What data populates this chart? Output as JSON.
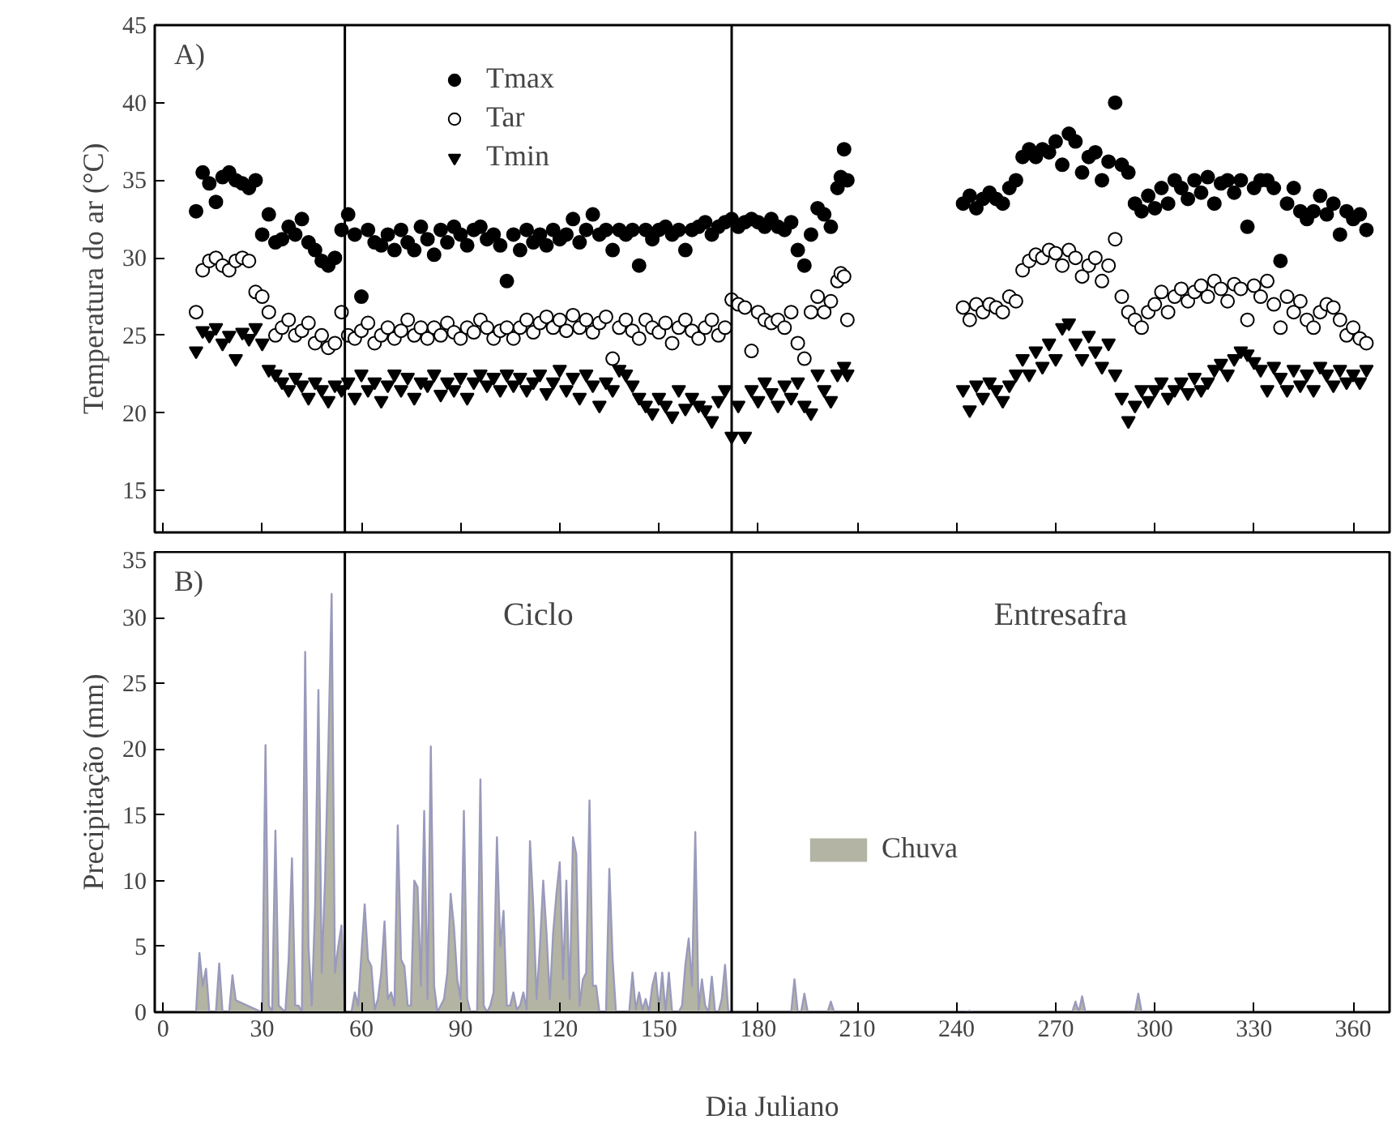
{
  "chart_data": [
    {
      "type": "scatter",
      "ylabel": "Temperatura do ar (°C)",
      "annotations": [
        "A)"
      ],
      "xlim": [
        -2.5,
        371
      ],
      "ylim": [
        12.3,
        45
      ],
      "xticks": [
        0,
        30,
        60,
        90,
        120,
        150,
        180,
        210,
        240,
        270,
        300,
        330,
        360
      ],
      "yticks": [
        15,
        20,
        25,
        30,
        35,
        40,
        45
      ],
      "tick_labels": "y",
      "grid": false,
      "legend": "top",
      "ref_lines": [
        {
          "axis": "x",
          "value": 55,
          "color": "#000000"
        },
        {
          "axis": "x",
          "value": 172,
          "color": "#000000"
        }
      ],
      "series": [
        {
          "name": "Tmax",
          "color": "#000000",
          "marker": "circle",
          "x": [
            10,
            12,
            14,
            16,
            18,
            20,
            22,
            24,
            26,
            28,
            30,
            32,
            34,
            36,
            38,
            40,
            42,
            44,
            46,
            48,
            50,
            52,
            54,
            56,
            58,
            60,
            62,
            64,
            66,
            68,
            70,
            72,
            74,
            76,
            78,
            80,
            82,
            84,
            86,
            88,
            90,
            92,
            94,
            96,
            98,
            100,
            102,
            104,
            106,
            108,
            110,
            112,
            114,
            116,
            118,
            120,
            122,
            124,
            126,
            128,
            130,
            132,
            134,
            136,
            138,
            140,
            142,
            144,
            146,
            148,
            150,
            152,
            154,
            156,
            158,
            160,
            162,
            164,
            166,
            168,
            170,
            172,
            174,
            176,
            178,
            180,
            182,
            184,
            186,
            188,
            190,
            192,
            194,
            196,
            198,
            200,
            202,
            204,
            205,
            206,
            207,
            242,
            244,
            246,
            248,
            250,
            252,
            254,
            256,
            258,
            260,
            262,
            264,
            266,
            268,
            270,
            272,
            274,
            276,
            278,
            280,
            282,
            284,
            286,
            288,
            290,
            292,
            294,
            296,
            298,
            300,
            302,
            304,
            306,
            308,
            310,
            312,
            314,
            316,
            318,
            320,
            322,
            324,
            326,
            328,
            330,
            332,
            334,
            336,
            338,
            340,
            342,
            344,
            346,
            348,
            350,
            352,
            354,
            356,
            358,
            360,
            362,
            364
          ],
          "values": [
            33,
            35.5,
            34.8,
            33.6,
            35.2,
            35.5,
            35,
            34.8,
            34.5,
            35,
            31.5,
            32.8,
            31,
            31.2,
            32,
            31.5,
            32.5,
            31,
            30.5,
            29.8,
            29.5,
            30,
            31.8,
            32.8,
            31.5,
            27.5,
            31.8,
            31,
            30.8,
            31.5,
            30.5,
            31.8,
            31,
            30.5,
            32,
            31.2,
            30.2,
            31.8,
            31,
            32,
            31.5,
            30.8,
            31.8,
            32,
            31.2,
            31.5,
            30.8,
            28.5,
            31.5,
            30.5,
            31.8,
            31,
            31.5,
            30.8,
            31.8,
            31.2,
            31.5,
            32.5,
            31,
            31.8,
            32.8,
            31.5,
            31.8,
            30.5,
            31.8,
            31.5,
            31.8,
            29.5,
            31.8,
            31.2,
            31.8,
            32,
            31.5,
            31.8,
            30.5,
            31.8,
            32,
            32.3,
            31.5,
            32,
            32.3,
            32.5,
            32,
            32.3,
            32.5,
            32.3,
            32,
            32.5,
            32,
            31.8,
            32.3,
            30.5,
            29.5,
            31.5,
            33.2,
            32.8,
            32,
            34.5,
            35.2,
            37,
            35,
            33.5,
            34,
            33.2,
            33.8,
            34.2,
            33.8,
            33.5,
            34.5,
            35,
            36.5,
            37,
            36.5,
            37,
            36.8,
            37.5,
            36,
            38,
            37.5,
            35.5,
            36.5,
            36.8,
            35,
            36.2,
            40,
            36,
            35.5,
            33.5,
            33,
            34,
            33.2,
            34.5,
            33.5,
            35,
            34.5,
            33.8,
            35,
            34.2,
            35.2,
            33.5,
            34.8,
            35,
            34.2,
            35,
            32,
            34.5,
            35,
            35,
            34.5,
            29.8,
            33.5,
            34.5,
            33,
            32.5,
            33,
            34,
            32.8,
            33.5,
            31.5,
            33,
            32.5,
            32.8,
            31.8
          ]
        },
        {
          "name": "Tar",
          "color": "#ffffff",
          "marker": "circle",
          "x": [
            10,
            12,
            14,
            16,
            18,
            20,
            22,
            24,
            26,
            28,
            30,
            32,
            34,
            36,
            38,
            40,
            42,
            44,
            46,
            48,
            50,
            52,
            54,
            56,
            58,
            60,
            62,
            64,
            66,
            68,
            70,
            72,
            74,
            76,
            78,
            80,
            82,
            84,
            86,
            88,
            90,
            92,
            94,
            96,
            98,
            100,
            102,
            104,
            106,
            108,
            110,
            112,
            114,
            116,
            118,
            120,
            122,
            124,
            126,
            128,
            130,
            132,
            134,
            136,
            138,
            140,
            142,
            144,
            146,
            148,
            150,
            152,
            154,
            156,
            158,
            160,
            162,
            164,
            166,
            168,
            170,
            172,
            174,
            176,
            178,
            180,
            182,
            184,
            186,
            188,
            190,
            192,
            194,
            196,
            198,
            200,
            202,
            204,
            205,
            206,
            207,
            242,
            244,
            246,
            248,
            250,
            252,
            254,
            256,
            258,
            260,
            262,
            264,
            266,
            268,
            270,
            272,
            274,
            276,
            278,
            280,
            282,
            284,
            286,
            288,
            290,
            292,
            294,
            296,
            298,
            300,
            302,
            304,
            306,
            308,
            310,
            312,
            314,
            316,
            318,
            320,
            322,
            324,
            326,
            328,
            330,
            332,
            334,
            336,
            338,
            340,
            342,
            344,
            346,
            348,
            350,
            352,
            354,
            356,
            358,
            360,
            362,
            364
          ],
          "values": [
            26.5,
            29.2,
            29.8,
            30,
            29.5,
            29.2,
            29.8,
            30,
            29.8,
            27.8,
            27.5,
            26.5,
            25,
            25.5,
            26,
            25,
            25.3,
            25.8,
            24.5,
            25,
            24.2,
            24.5,
            26.5,
            25,
            24.8,
            25.3,
            25.8,
            24.5,
            25,
            25.5,
            24.8,
            25.3,
            26,
            25,
            25.5,
            24.8,
            25.5,
            25,
            25.8,
            25.2,
            24.8,
            25.5,
            25.2,
            26,
            25.5,
            24.8,
            25.3,
            25.5,
            24.8,
            25.5,
            26,
            25.2,
            25.8,
            26.2,
            25.5,
            26,
            25.3,
            26.3,
            25.5,
            26,
            25.2,
            25.8,
            26.2,
            23.5,
            25.5,
            26,
            25.3,
            24.8,
            26,
            25.5,
            25.2,
            25.8,
            24.5,
            25.5,
            26,
            25.3,
            24.8,
            25.5,
            26,
            25,
            25.5,
            27.3,
            27,
            26.8,
            24,
            26.5,
            26,
            25.8,
            26,
            25.5,
            26.5,
            24.5,
            23.5,
            26.5,
            27.5,
            26.5,
            27.2,
            28.5,
            29,
            28.8,
            26,
            26.8,
            26,
            27,
            26.5,
            27,
            26.8,
            26.5,
            27.5,
            27.2,
            29.2,
            29.8,
            30.2,
            30,
            30.5,
            30.3,
            29.5,
            30.5,
            30,
            28.8,
            29.5,
            30,
            28.5,
            29.5,
            31.2,
            27.5,
            26.5,
            26,
            25.5,
            26.5,
            27,
            27.8,
            26.5,
            27.5,
            28,
            27.2,
            27.8,
            28.2,
            27.5,
            28.5,
            28,
            27.2,
            28.3,
            28,
            26,
            28.2,
            27.5,
            28.5,
            27,
            25.5,
            27.5,
            26.5,
            27.2,
            26,
            25.5,
            26.5,
            27,
            26.8,
            26,
            25,
            25.5,
            24.8,
            24.5
          ]
        },
        {
          "name": "Tmin",
          "color": "#000000",
          "marker": "triangle",
          "x": [
            10,
            12,
            14,
            16,
            18,
            20,
            22,
            24,
            26,
            28,
            30,
            32,
            34,
            36,
            38,
            40,
            42,
            44,
            46,
            48,
            50,
            52,
            54,
            56,
            58,
            60,
            62,
            64,
            66,
            68,
            70,
            72,
            74,
            76,
            78,
            80,
            82,
            84,
            86,
            88,
            90,
            92,
            94,
            96,
            98,
            100,
            102,
            104,
            106,
            108,
            110,
            112,
            114,
            116,
            118,
            120,
            122,
            124,
            126,
            128,
            130,
            132,
            134,
            136,
            138,
            140,
            142,
            144,
            146,
            148,
            150,
            152,
            154,
            156,
            158,
            160,
            162,
            164,
            166,
            168,
            170,
            172,
            174,
            176,
            178,
            180,
            182,
            184,
            186,
            188,
            190,
            192,
            194,
            196,
            198,
            200,
            202,
            204,
            206,
            207,
            242,
            244,
            246,
            248,
            250,
            252,
            254,
            256,
            258,
            260,
            262,
            264,
            266,
            268,
            270,
            272,
            274,
            276,
            278,
            280,
            282,
            284,
            286,
            288,
            290,
            292,
            294,
            296,
            298,
            300,
            302,
            304,
            306,
            308,
            310,
            312,
            314,
            316,
            318,
            320,
            322,
            324,
            326,
            328,
            330,
            332,
            334,
            336,
            338,
            340,
            342,
            344,
            346,
            348,
            350,
            352,
            354,
            356,
            358,
            360,
            362,
            364
          ],
          "values": [
            24,
            25.3,
            25,
            25.5,
            24.5,
            25,
            23.5,
            25.2,
            24.8,
            25.5,
            24.5,
            22.8,
            22.5,
            22,
            21.5,
            22.3,
            21.8,
            21,
            22,
            21.5,
            20.8,
            21.8,
            21.5,
            22,
            21,
            22.5,
            21.5,
            22,
            20.8,
            21.8,
            22.5,
            21.5,
            22.3,
            21,
            22,
            21.8,
            22.5,
            21.2,
            22,
            21.5,
            22.3,
            21,
            22,
            22.5,
            21.8,
            22.3,
            21.5,
            22.5,
            21.8,
            22.3,
            21.5,
            22,
            22.5,
            21.3,
            22,
            22.8,
            21.5,
            22.3,
            21,
            22.5,
            21.8,
            20.5,
            22,
            21.5,
            22.8,
            22.5,
            21.8,
            21,
            20.5,
            20,
            21,
            20.5,
            19.8,
            21.5,
            20.3,
            21,
            20.5,
            20.2,
            19.5,
            20.8,
            21.5,
            18.5,
            20.5,
            18.5,
            21.5,
            20.8,
            22,
            21.3,
            20.5,
            21.8,
            21,
            22,
            20.5,
            20,
            22.5,
            21.5,
            20.8,
            22.5,
            23,
            22.5,
            21.5,
            20.2,
            21.8,
            21,
            22,
            21.5,
            20.8,
            21.8,
            22.5,
            23.5,
            22.5,
            24,
            23,
            24.5,
            23.5,
            25.5,
            25.8,
            24.5,
            23.5,
            25,
            24,
            23,
            24.5,
            22.5,
            21,
            19.5,
            20.5,
            21.5,
            20.8,
            21.5,
            22,
            21,
            21.5,
            22,
            21.3,
            22.3,
            21.5,
            22,
            22.8,
            23.2,
            22.5,
            23.5,
            24,
            23.8,
            23.3,
            22.8,
            21.5,
            23,
            22.3,
            21.5,
            22.8,
            21.8,
            22.5,
            21.5,
            23,
            22.5,
            21.8,
            22.8,
            22,
            22.5,
            22,
            22.8
          ]
        }
      ]
    },
    {
      "type": "area",
      "xlabel": "Dia Juliano",
      "ylabel": "Precipitação (mm)",
      "annotations": [
        "B)",
        "Ciclo",
        "Entresafra"
      ],
      "xlim": [
        -2.5,
        371
      ],
      "ylim": [
        0,
        35
      ],
      "xticks": [
        0,
        30,
        60,
        90,
        120,
        150,
        180,
        210,
        240,
        270,
        300,
        330,
        360
      ],
      "yticks": [
        0,
        5,
        10,
        15,
        20,
        25,
        30,
        35
      ],
      "grid": false,
      "legend": "right",
      "ref_lines": [
        {
          "axis": "x",
          "value": 55,
          "color": "#000000"
        },
        {
          "axis": "x",
          "value": 172,
          "color": "#000000"
        }
      ],
      "series": [
        {
          "name": "Chuva",
          "color": "#b4b4a4",
          "x": [
            10,
            11,
            12,
            13,
            14,
            16,
            17,
            18,
            20,
            21,
            22,
            29,
            30,
            31,
            32,
            33,
            34,
            35,
            37,
            38,
            39,
            40,
            41,
            42,
            43,
            44,
            45,
            46,
            47,
            48,
            49,
            50,
            51,
            52,
            53,
            54,
            55,
            57,
            58,
            59,
            61,
            62,
            63,
            64,
            65,
            66,
            67,
            68,
            69,
            70,
            71,
            72,
            73,
            74,
            75,
            76,
            77,
            78,
            79,
            80,
            81,
            82,
            83,
            85,
            86,
            87,
            88,
            89,
            90,
            91,
            92,
            93,
            95,
            96,
            97,
            98,
            99,
            100,
            101,
            102,
            103,
            104,
            105,
            106,
            107,
            108,
            109,
            110,
            111,
            112,
            113,
            114,
            115,
            116,
            117,
            118,
            119,
            120,
            121,
            122,
            123,
            124,
            125,
            126,
            127,
            128,
            129,
            130,
            131,
            132,
            134,
            135,
            136,
            137,
            141,
            142,
            143,
            144,
            145,
            146,
            147,
            148,
            149,
            150,
            151,
            152,
            153,
            154,
            156,
            157,
            158,
            159,
            160,
            161,
            162,
            163,
            164,
            165,
            166,
            167,
            168,
            169,
            170,
            171,
            190,
            191,
            192,
            193,
            194,
            195,
            201,
            202,
            203,
            243,
            244,
            245,
            275,
            276,
            277,
            278,
            279,
            294,
            295,
            296,
            365
          ],
          "values": [
            0,
            4.5,
            2,
            3.3,
            0,
            0,
            3.7,
            0,
            0,
            2.8,
            0.9,
            0.1,
            0,
            20.3,
            0.5,
            0,
            13.8,
            0.5,
            0,
            4,
            11.7,
            0.5,
            0.5,
            0,
            27.4,
            5,
            0.5,
            8,
            24.5,
            3,
            10,
            20,
            31.8,
            3,
            5,
            6.6,
            0,
            0,
            1.5,
            0.5,
            8.2,
            4,
            3.5,
            0.2,
            1,
            3,
            6.9,
            1,
            1.5,
            0.5,
            14.2,
            4,
            3.5,
            0.5,
            0.5,
            10,
            9.5,
            2,
            15.3,
            1,
            20.2,
            2,
            0,
            1,
            3,
            9,
            6.5,
            2.5,
            1,
            15.3,
            1,
            0,
            0,
            17.7,
            0.5,
            0,
            0.5,
            1.5,
            13.3,
            5,
            7.7,
            0.5,
            0.5,
            1.5,
            0.2,
            0.5,
            1.5,
            0.2,
            13,
            8,
            1,
            5,
            10,
            6,
            1,
            6,
            9,
            11.4,
            2.5,
            10,
            1,
            13.3,
            12,
            0.5,
            2.5,
            3,
            16.1,
            2,
            2,
            0,
            0,
            10.9,
            4,
            0,
            0,
            3,
            0.2,
            1.5,
            0.2,
            1,
            0,
            2,
            3,
            0.2,
            3,
            0,
            3,
            0,
            0,
            0.5,
            3.6,
            5.6,
            2,
            13.7,
            0.2,
            2.5,
            0.5,
            0,
            2.7,
            0,
            0,
            1,
            3.6,
            0,
            0,
            2.5,
            0,
            0,
            1.4,
            0,
            0,
            0.8,
            0,
            0,
            0.1,
            0,
            0,
            0.8,
            0,
            1.2,
            0,
            0,
            1.4,
            0,
            0
          ]
        }
      ]
    }
  ]
}
